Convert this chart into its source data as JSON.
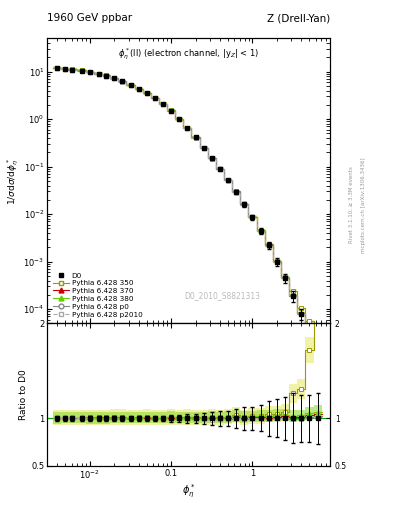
{
  "title_left": "1960 GeV ppbar",
  "title_right": "Z (Drell-Yan)",
  "annotation": "$\\phi^*_\\eta$(ll) (electron channel, |y$_Z$| < 1)",
  "watermark": "D0_2010_S8821313",
  "ylabel_main": "1/$\\sigma$d$\\sigma$/d$\\phi^*_\\eta$",
  "ylabel_ratio": "Ratio to D0",
  "xlabel": "$\\phi^*_\\eta$",
  "xlim": [
    0.003,
    9.0
  ],
  "ylim_main": [
    5e-05,
    50.0
  ],
  "ylim_ratio": [
    0.5,
    2.5
  ],
  "phi_star": [
    0.004,
    0.005,
    0.006,
    0.008,
    0.01,
    0.013,
    0.016,
    0.02,
    0.025,
    0.032,
    0.04,
    0.05,
    0.063,
    0.079,
    0.1,
    0.126,
    0.158,
    0.2,
    0.251,
    0.316,
    0.398,
    0.501,
    0.631,
    0.794,
    1.0,
    1.26,
    1.585,
    2.0,
    2.512,
    3.162,
    3.981,
    5.012,
    6.31
  ],
  "d0_values": [
    12.0,
    11.5,
    11.0,
    10.5,
    9.8,
    9.0,
    8.2,
    7.2,
    6.2,
    5.2,
    4.3,
    3.5,
    2.8,
    2.1,
    1.5,
    1.0,
    0.65,
    0.41,
    0.25,
    0.15,
    0.09,
    0.052,
    0.029,
    0.016,
    0.0085,
    0.0044,
    0.0022,
    0.001,
    0.00045,
    0.00019,
    8e-05,
    3.2e-05,
    1.1e-05
  ],
  "d0_errors": [
    0.3,
    0.28,
    0.26,
    0.25,
    0.23,
    0.21,
    0.19,
    0.17,
    0.15,
    0.13,
    0.11,
    0.09,
    0.07,
    0.06,
    0.05,
    0.04,
    0.03,
    0.02,
    0.015,
    0.01,
    0.007,
    0.004,
    0.003,
    0.002,
    0.001,
    0.0006,
    0.0004,
    0.0002,
    0.0001,
    5e-05,
    2e-05,
    8e-06,
    3e-06
  ],
  "mc_350_values": [
    12.1,
    11.6,
    11.1,
    10.6,
    9.9,
    9.1,
    8.3,
    7.3,
    6.3,
    5.25,
    4.35,
    3.55,
    2.82,
    2.12,
    1.52,
    1.01,
    0.66,
    0.415,
    0.252,
    0.152,
    0.091,
    0.053,
    0.03,
    0.0162,
    0.0087,
    0.0045,
    0.0023,
    0.00105,
    0.00048,
    0.00024,
    0.000105,
    5.5e-05,
    2.5e-05
  ],
  "mc_370_values": [
    12.05,
    11.55,
    11.05,
    10.55,
    9.82,
    9.02,
    8.22,
    7.22,
    6.22,
    5.22,
    4.32,
    3.52,
    2.81,
    2.11,
    1.51,
    1.005,
    0.652,
    0.412,
    0.251,
    0.151,
    0.0905,
    0.0525,
    0.0295,
    0.0161,
    0.0086,
    0.00445,
    0.00222,
    0.00102,
    0.00046,
    0.000192,
    8.1e-05,
    3.3e-05,
    1.15e-05
  ],
  "mc_380_values": [
    12.08,
    11.58,
    11.08,
    10.58,
    9.85,
    9.05,
    8.25,
    7.25,
    6.25,
    5.24,
    4.34,
    3.54,
    2.82,
    2.12,
    1.52,
    1.008,
    0.655,
    0.413,
    0.252,
    0.152,
    0.0908,
    0.0528,
    0.0298,
    0.01625,
    0.00868,
    0.00452,
    0.00225,
    0.001035,
    0.000468,
    0.000195,
    8.25e-05,
    3.38e-05,
    1.18e-05
  ],
  "mc_p0_values": [
    12.02,
    11.52,
    11.02,
    10.52,
    9.79,
    8.99,
    8.19,
    7.19,
    6.19,
    5.19,
    4.29,
    3.49,
    2.79,
    2.09,
    1.495,
    0.999,
    0.648,
    0.409,
    0.249,
    0.149,
    0.0895,
    0.0519,
    0.0292,
    0.01598,
    0.00855,
    0.00442,
    0.00219,
    0.001005,
    0.000453,
    0.000189,
    7.95e-05,
    3.25e-05,
    1.13e-05
  ],
  "mc_p2010_values": [
    12.0,
    11.5,
    11.0,
    10.5,
    9.78,
    8.98,
    8.18,
    7.18,
    6.18,
    5.18,
    4.28,
    3.48,
    2.78,
    2.08,
    1.49,
    0.998,
    0.647,
    0.408,
    0.248,
    0.148,
    0.0892,
    0.0517,
    0.0291,
    0.01592,
    0.00852,
    0.0044,
    0.00218,
    0.001002,
    0.000451,
    0.000188,
    7.92e-05,
    3.23e-05,
    1.12e-05
  ],
  "color_d0": "#000000",
  "color_350": "#999900",
  "color_370": "#cc0000",
  "color_380": "#66cc00",
  "color_p0": "#888888",
  "color_p2010": "#aaaaaa",
  "color_350_fill": "#eeee88",
  "color_380_fill": "#99dd44",
  "right_label1": "Rivet 3.1.10, ≥ 3.3M events",
  "right_label2": "mcplots.cern.ch [arXiv:1306.3436]"
}
